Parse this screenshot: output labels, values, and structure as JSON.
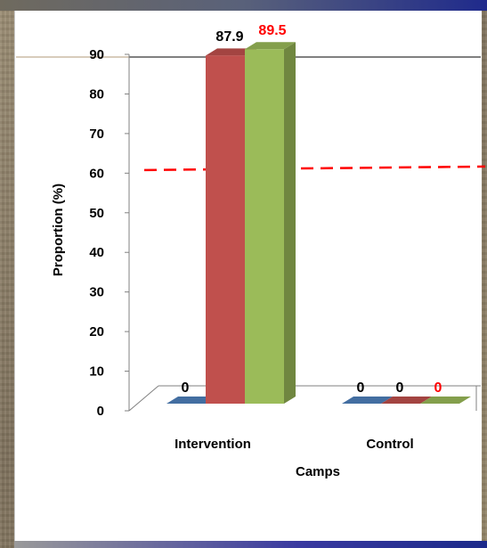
{
  "chart_data": {
    "type": "bar",
    "categories": [
      "Intervention",
      "Control"
    ],
    "series": [
      {
        "values": [
          0,
          0
        ],
        "color": "#4f81bd",
        "label_color": "#000000"
      },
      {
        "values": [
          87.9,
          0
        ],
        "color": "#c0504d",
        "label_color": "#000000"
      },
      {
        "values": [
          89.5,
          0
        ],
        "color": "#9bbb59",
        "label_color": "#ff0000"
      }
    ],
    "data_labels": [
      [
        "0",
        "",
        ""
      ],
      [
        "0",
        "0",
        "0"
      ]
    ],
    "data_label_top": [
      "87.9",
      "89.5"
    ],
    "xlabel": "Camps",
    "ylabel": "Proportion (%)",
    "ylim": [
      0,
      90
    ],
    "yticks": [
      "0",
      "10",
      "20",
      "30",
      "40",
      "50",
      "60",
      "70",
      "80",
      "90"
    ],
    "reference_line": {
      "value": 61,
      "style": "dashed",
      "color": "#ff0000"
    },
    "grid": false,
    "legend": "none"
  }
}
